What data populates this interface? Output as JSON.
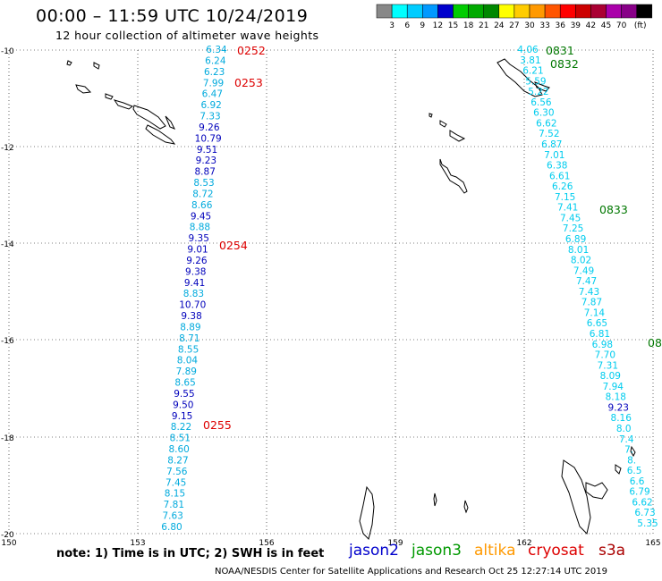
{
  "header": {
    "title": "00:00 – 11:59 UTC 10/24/2019",
    "subtitle": "12 hour collection of altimeter wave heights"
  },
  "colorbar": {
    "colors": [
      "#888888",
      "#00ffff",
      "#00ccff",
      "#0099ff",
      "#0000cc",
      "#00cc00",
      "#00aa00",
      "#008800",
      "#ffff00",
      "#ffcc00",
      "#ff9900",
      "#ff5500",
      "#ff0000",
      "#cc0000",
      "#aa0033",
      "#aa00aa",
      "#880088",
      "#000000"
    ],
    "labels": [
      "3",
      "6",
      "9",
      "12",
      "15",
      "18",
      "21",
      "24",
      "27",
      "30",
      "33",
      "36",
      "39",
      "42",
      "45",
      "70",
      "(ft)"
    ]
  },
  "axes": {
    "x_ticks": [
      "150",
      "153",
      "156",
      "159",
      "162",
      "165"
    ],
    "y_ticks": [
      "-10",
      "-12",
      "-14",
      "-16",
      "-18",
      "-20"
    ]
  },
  "tracks": {
    "left": [
      "6.34",
      "6.24",
      "6.23",
      "7.99",
      "6.47",
      "6.92",
      "7.33",
      "9.26",
      "10.79",
      "9.51",
      "9.23",
      "8.87",
      "8.53",
      "8.72",
      "8.66",
      "9.45",
      "8.88",
      "9.35",
      "9.01",
      "9.26",
      "9.38",
      "9.41",
      "8.83",
      "10.70",
      "9.38",
      "8.89",
      "8.71",
      "8.55",
      "8.04",
      "7.89",
      "8.65",
      "9.55",
      "9.50",
      "9.15",
      "8.22",
      "8.51",
      "8.60",
      "8.27",
      "7.56",
      "7.45",
      "8.15",
      "7.81",
      "7.63",
      "6.80"
    ],
    "left_colors": [
      "#00aadd",
      "#00aadd",
      "#00aadd",
      "#00aadd",
      "#00aadd",
      "#00aadd",
      "#00aadd",
      "#0000bb",
      "#0000bb",
      "#0000bb",
      "#0000bb",
      "#0000bb",
      "#00aadd",
      "#00aadd",
      "#00aadd",
      "#0000bb",
      "#00aadd",
      "#0000bb",
      "#0000bb",
      "#0000bb",
      "#0000bb",
      "#0000bb",
      "#00aadd",
      "#0000bb",
      "#0000bb",
      "#00aadd",
      "#00aadd",
      "#00aadd",
      "#00aadd",
      "#00aadd",
      "#00aadd",
      "#0000bb",
      "#0000bb",
      "#0000bb",
      "#00aadd",
      "#00aadd",
      "#00aadd",
      "#00aadd",
      "#00aadd",
      "#00aadd",
      "#00aadd",
      "#00aadd",
      "#00aadd",
      "#00aadd"
    ],
    "right": [
      "4.06",
      "3.81",
      "6.21",
      "5.59",
      "5.22",
      "6.56",
      "6.30",
      "6.62",
      "7.52",
      "6.87",
      "7.01",
      "6.38",
      "6.61",
      "6.26",
      "7.15",
      "7.41",
      "7.45",
      "7.25",
      "6.89",
      "8.01",
      "8.02",
      "7.49",
      "7.47",
      "7.43",
      "7.87",
      "7.14",
      "6.65",
      "6.81",
      "6.98",
      "7.70",
      "7.31",
      "8.09",
      "7.94",
      "8.18",
      "9.23",
      "8.16",
      "8.0",
      "7.4",
      "7.",
      "8.",
      "6.5",
      "6.6",
      "6.79",
      "6.62",
      "6.73",
      "5.35"
    ],
    "right_colors": [
      "#00ccee",
      "#00ccee",
      "#00ccee",
      "#00ccee",
      "#00ccee",
      "#00ccee",
      "#00ccee",
      "#00ccee",
      "#00ccee",
      "#00ccee",
      "#00ccee",
      "#00ccee",
      "#00ccee",
      "#00ccee",
      "#00ccee",
      "#00ccee",
      "#00ccee",
      "#00ccee",
      "#00ccee",
      "#00ccee",
      "#00ccee",
      "#00ccee",
      "#00ccee",
      "#00ccee",
      "#00ccee",
      "#00ccee",
      "#00ccee",
      "#00ccee",
      "#00ccee",
      "#00ccee",
      "#00ccee",
      "#00ccee",
      "#00ccee",
      "#00ccee",
      "#0000bb",
      "#00ccee",
      "#00ccee",
      "#00ccee",
      "#00ccee",
      "#00ccee",
      "#00ccee",
      "#00ccee",
      "#00ccee",
      "#00ccee",
      "#00ccee",
      "#00ccee"
    ]
  },
  "time_labels": {
    "red": [
      "0252",
      "0253",
      "0254",
      "0255"
    ],
    "green": [
      "0831",
      "0832",
      "0833",
      "08"
    ]
  },
  "note": "note:  1) Time is in UTC;  2) SWH is in feet",
  "satellites": [
    {
      "name": "jason2",
      "color": "#0000cc"
    },
    {
      "name": "jason3",
      "color": "#009900"
    },
    {
      "name": "altika",
      "color": "#ff9900"
    },
    {
      "name": "cryosat",
      "color": "#dd0000"
    },
    {
      "name": "s3a",
      "color": "#aa0000"
    }
  ],
  "credit": "NOAA/NESDIS Center for Satellite Applications and Research    Oct 25 12:27:14 UTC 2019"
}
